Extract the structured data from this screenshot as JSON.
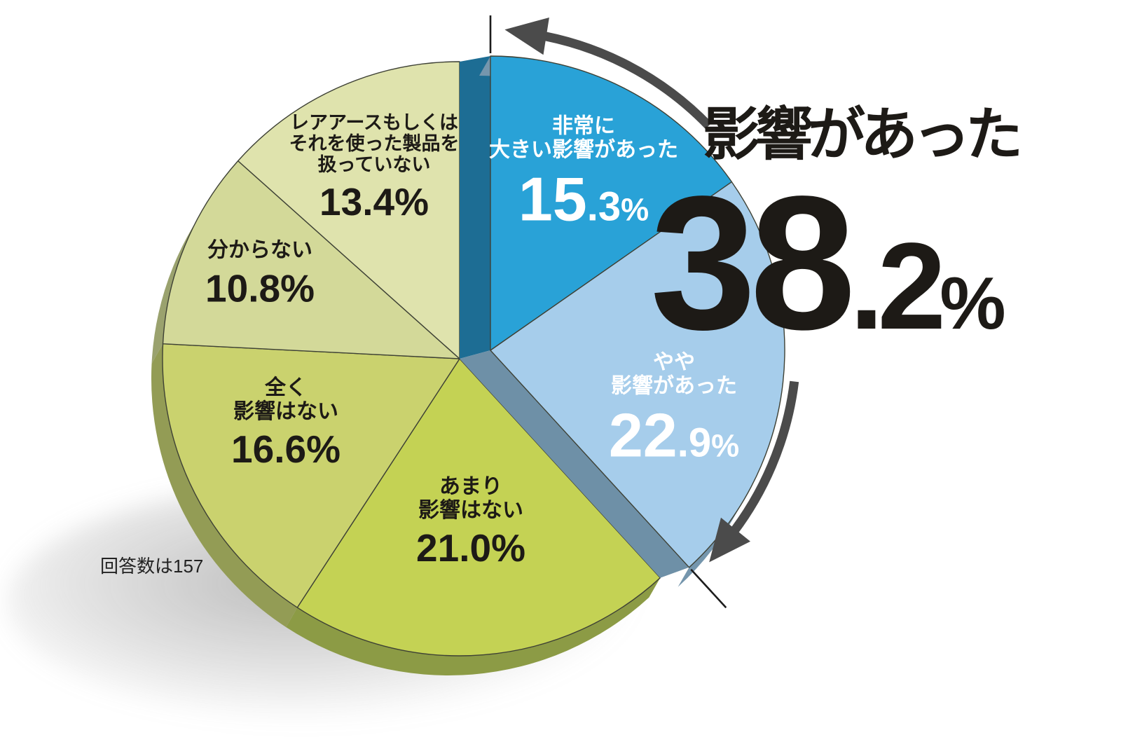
{
  "chart_data": {
    "type": "pie",
    "note": "回答数は157",
    "highlight": {
      "label": "影響があった",
      "pct_int": "38",
      "pct_dec": ".2",
      "pct_unit": "%",
      "value": 38.2,
      "slice_indexes": [
        0,
        1
      ]
    },
    "slices": [
      {
        "label_lines": [
          "非常に",
          "大きい影響があった"
        ],
        "value": 15.3,
        "pct_int": "15",
        "pct_dec": ".3",
        "pct_unit": "%",
        "color": "#29a2d7",
        "side_color": "#1d6d94",
        "text_color": "#ffffff"
      },
      {
        "label_lines": [
          "やや",
          "影響があった"
        ],
        "value": 22.9,
        "pct_int": "22",
        "pct_dec": ".9",
        "pct_unit": "%",
        "color": "#a6cdeb",
        "side_color": "#6e90a7",
        "text_color": "#ffffff"
      },
      {
        "label_lines": [
          "あまり",
          "影響はない"
        ],
        "value": 21.0,
        "pct_int": "21",
        "pct_dec": ".0",
        "pct_unit": "%",
        "color": "#c4d254",
        "side_color": "#8c9b45",
        "text_color": "#1d1a16"
      },
      {
        "label_lines": [
          "全く",
          "影響はない"
        ],
        "value": 16.6,
        "pct_int": "16",
        "pct_dec": ".6",
        "pct_unit": "%",
        "color": "#cad26e",
        "side_color": "#939c55",
        "text_color": "#1d1a16"
      },
      {
        "label_lines": [
          "分からない"
        ],
        "value": 10.8,
        "pct_int": "10",
        "pct_dec": ".8",
        "pct_unit": "%",
        "color": "#d3d999",
        "side_color": "#9aa26e",
        "text_color": "#1d1a16"
      },
      {
        "label_lines": [
          "レアアースもしくは",
          "それを使った製品を",
          "扱っていない"
        ],
        "value": 13.4,
        "pct_int": "13",
        "pct_dec": ".4",
        "pct_unit": "%",
        "color": "#dfe3ad",
        "side_color": "#b3b787",
        "text_color": "#1d1a16"
      }
    ],
    "colors": {
      "arrow": "#4b4b4b",
      "tick_line": "#1c1c1c",
      "outline": "#3e4135"
    },
    "legend_position": "on-slices",
    "start_angle_deg": 0,
    "direction": "clockwise"
  }
}
